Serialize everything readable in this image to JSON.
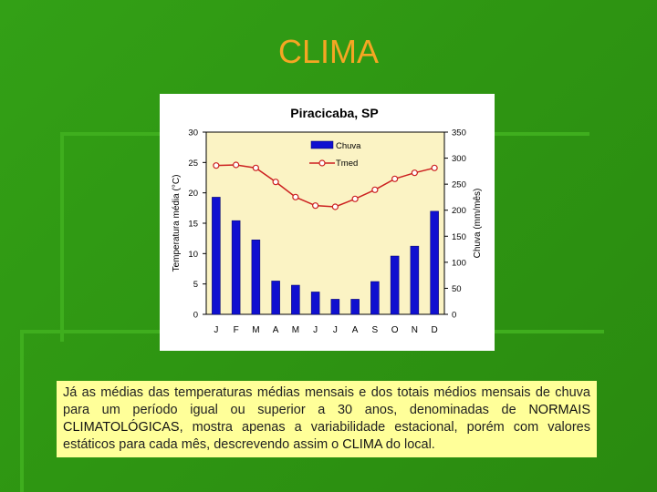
{
  "slide": {
    "title": "CLIMA"
  },
  "caption": {
    "p1": "Já as médias das temperaturas médias mensais e dos totais médios mensais de chuva para um período igual ou superior a 30 anos, denominadas de ",
    "em1": "NORMAIS CLIMATOLÓGICAS",
    "p2": ", mostra apenas a variabilidade estacional, porém com valores estáticos para cada mês, descrevendo assim o ",
    "em2": "CLIMA",
    "p3": " do local."
  },
  "colors": {
    "title": "#f5a623",
    "bars": "#1010d0",
    "line": "#cc2020",
    "plot_bg": "#fbf3c4",
    "caption_bg": "#ffff99"
  },
  "chart_data": {
    "type": "bar+line",
    "title": "Piracicaba, SP",
    "categories": [
      "J",
      "F",
      "M",
      "A",
      "M",
      "J",
      "J",
      "A",
      "S",
      "O",
      "N",
      "D"
    ],
    "series": [
      {
        "name": "Chuva",
        "type": "bar",
        "axis": "right",
        "values": [
          225,
          180,
          143,
          64,
          56,
          43,
          29,
          29,
          63,
          112,
          131,
          198
        ]
      },
      {
        "name": "Tmed",
        "type": "line",
        "axis": "left",
        "values": [
          24.5,
          24.6,
          24.1,
          21.8,
          19.3,
          17.9,
          17.7,
          19.0,
          20.5,
          22.3,
          23.3,
          24.1
        ]
      }
    ],
    "ylabel_left": "Temperatura média (°C)",
    "ylabel_right": "Chuva (mm/mês)",
    "ylim_left": [
      0,
      30
    ],
    "ylim_right": [
      0,
      350
    ],
    "yticks_left": [
      0,
      5,
      10,
      15,
      20,
      25,
      30
    ],
    "yticks_right": [
      0,
      50,
      100,
      150,
      200,
      250,
      300,
      350
    ],
    "legend_position": "top-center"
  }
}
